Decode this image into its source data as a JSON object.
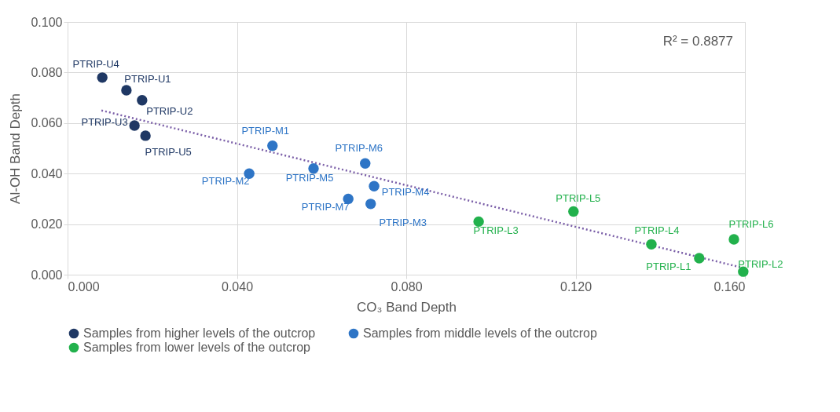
{
  "chart_data": {
    "type": "scatter",
    "xlabel": "CO₃ Band Depth",
    "ylabel": "Al-OH Band Depth",
    "xlim": [
      0,
      0.16
    ],
    "ylim": [
      0,
      0.1
    ],
    "xticks": [
      {
        "value": 0,
        "label": "0.000"
      },
      {
        "value": 0.04,
        "label": "0.040"
      },
      {
        "value": 0.08,
        "label": "0.080"
      },
      {
        "value": 0.12,
        "label": "0.120"
      },
      {
        "value": 0.16,
        "label": "0.160"
      }
    ],
    "yticks": [
      {
        "value": 0,
        "label": "0.000"
      },
      {
        "value": 0.02,
        "label": "0.020"
      },
      {
        "value": 0.04,
        "label": "0.040"
      },
      {
        "value": 0.06,
        "label": "0.060"
      },
      {
        "value": 0.08,
        "label": "0.080"
      },
      {
        "value": 0.1,
        "label": "0.100"
      }
    ],
    "grid": true,
    "legend": "bottom",
    "marker": "circle",
    "annotations": [
      "R² = 0.8877"
    ],
    "series": [
      {
        "name": "Samples from higher levels of the outcrop",
        "color": "#1f3864",
        "x": [
          0.0082,
          0.0139,
          0.0176,
          0.0158,
          0.0184
        ],
        "values": [
          0.078,
          0.073,
          0.069,
          0.059,
          0.055
        ],
        "value_labels": [
          "PTRIP-U4",
          "PTRIP-U1",
          "PTRIP-U2",
          "PTRIP-U3",
          "PTRIP-U5"
        ]
      },
      {
        "name": "Samples from middle levels of the outcrop",
        "color": "#2e75c6",
        "x": [
          0.0484,
          0.0429,
          0.0581,
          0.0703,
          0.0724,
          0.0663,
          0.0716
        ],
        "values": [
          0.051,
          0.04,
          0.042,
          0.044,
          0.035,
          0.03,
          0.028
        ],
        "value_labels": [
          "PTRIP-M1",
          "PTRIP-M2",
          "PTRIP-M5",
          "PTRIP-M6",
          "PTRIP-M4",
          "PTRIP-M7",
          "PTRIP-M3"
        ]
      },
      {
        "name": "Samples from lower levels of the outcrop",
        "color": "#22b14c",
        "x": [
          0.0971,
          0.1195,
          0.1379,
          0.1492,
          0.1574,
          0.1596
        ],
        "values": [
          0.021,
          0.025,
          0.012,
          0.0065,
          0.014,
          0.0012
        ],
        "value_labels": [
          "PTRIP-L3",
          "PTRIP-L5",
          "PTRIP-L4",
          "PTRIP-L1",
          "PTRIP-L6",
          "PTRIP-L2"
        ]
      },
      {
        "type": "line",
        "color": "#7b5fa8",
        "line_style": "dotted",
        "marker": "none",
        "x": [
          0.008,
          0.16
        ],
        "values": [
          0.065,
          0.0025
        ]
      }
    ]
  }
}
